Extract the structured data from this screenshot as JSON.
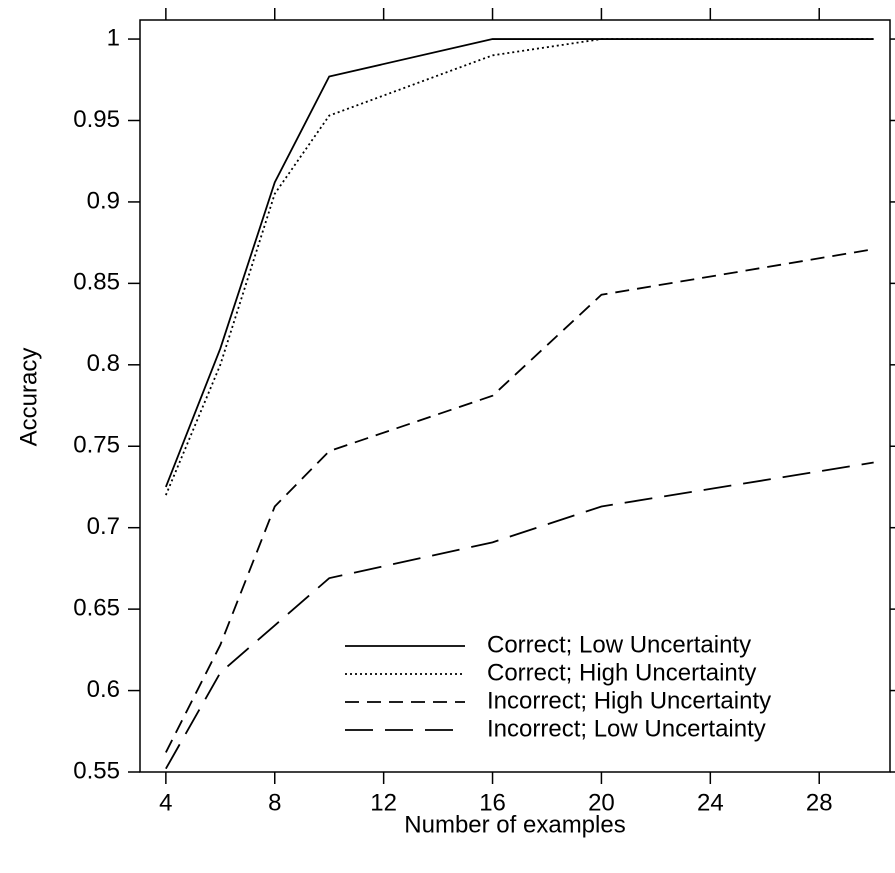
{
  "chart_data": {
    "type": "line",
    "x_label": "Number of examples",
    "y_label": "Accuracy",
    "x": [
      4,
      6,
      8,
      10,
      16,
      20,
      30
    ],
    "series": [
      {
        "name": "Correct; Low Uncertainty",
        "color": "#000000",
        "dash": "none",
        "values": [
          0.725,
          0.81,
          0.912,
          0.977,
          1,
          1,
          1
        ]
      },
      {
        "name": "Correct; High Uncertainty",
        "color": "#000000",
        "dash": "2,3",
        "values": [
          0.72,
          0.8,
          0.905,
          0.953,
          0.99,
          1,
          1
        ]
      },
      {
        "name": "Incorrect; High Uncertainty",
        "color": "#000000",
        "dash": "14,8",
        "values": [
          0.562,
          0.628,
          0.713,
          0.747,
          0.781,
          0.843,
          0.871
        ]
      },
      {
        "name": "Incorrect; Low Uncertainty",
        "color": "#000000",
        "dash": "28,12",
        "values": [
          0.552,
          0.611,
          0.64,
          0.669,
          0.691,
          0.713,
          0.74
        ]
      }
    ],
    "xlim": [
      3.05,
      30.6
    ],
    "xticks": [
      4,
      8,
      12,
      16,
      20,
      24,
      28
    ],
    "ylim": [
      0.55,
      1.0117
    ],
    "yticks": [
      0.55,
      0.6,
      0.65,
      0.7,
      0.75,
      0.8,
      0.85,
      0.9,
      0.95,
      1
    ],
    "legend": "lower right"
  }
}
